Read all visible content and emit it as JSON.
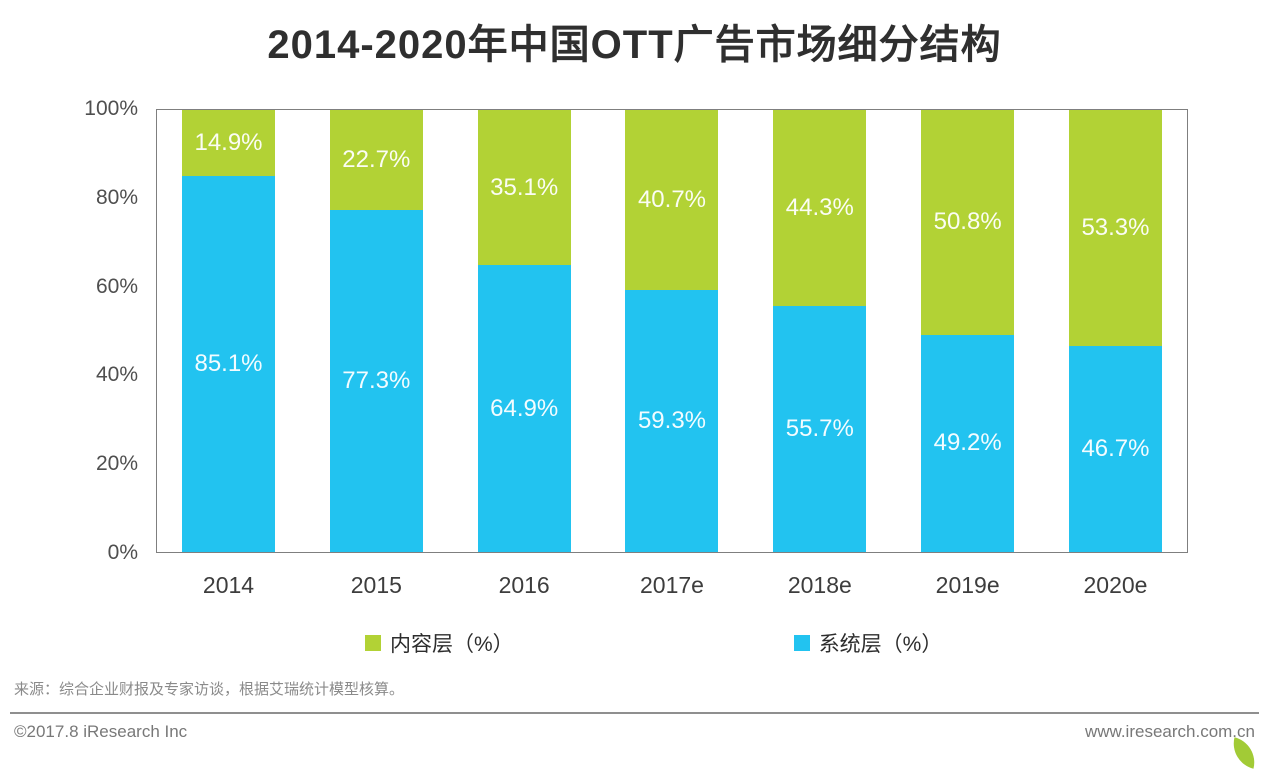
{
  "title": "2014-2020年中国OTT广告市场细分结构",
  "colors": {
    "content_green": "#b2d235",
    "system_blue": "#22c3f0",
    "plot_border": "#7f7f7f"
  },
  "chart_data": {
    "type": "bar",
    "stacked": true,
    "title": "2014-2020年中国OTT广告市场细分结构",
    "categories": [
      "2014",
      "2015",
      "2016",
      "2017e",
      "2018e",
      "2019e",
      "2020e"
    ],
    "series": [
      {
        "name": "内容层（%）",
        "color": "#b2d235",
        "values": [
          14.9,
          22.7,
          35.1,
          40.7,
          44.3,
          50.8,
          53.3
        ]
      },
      {
        "name": "系统层（%）",
        "color": "#22c3f0",
        "values": [
          85.1,
          77.3,
          64.9,
          59.3,
          55.7,
          49.2,
          46.7
        ]
      }
    ],
    "xlabel": "",
    "ylabel": "",
    "ylim": [
      0,
      100
    ],
    "yticks": [
      "100%",
      "80%",
      "60%",
      "40%",
      "20%",
      "0%"
    ],
    "grid": false,
    "legend_position": "bottom",
    "value_suffix": "%"
  },
  "source_note": "来源：综合企业财报及专家访谈，根据艾瑞统计模型核算。",
  "footer": {
    "copyright": "©2017.8 iResearch Inc",
    "website": "www.iresearch.com.cn"
  }
}
